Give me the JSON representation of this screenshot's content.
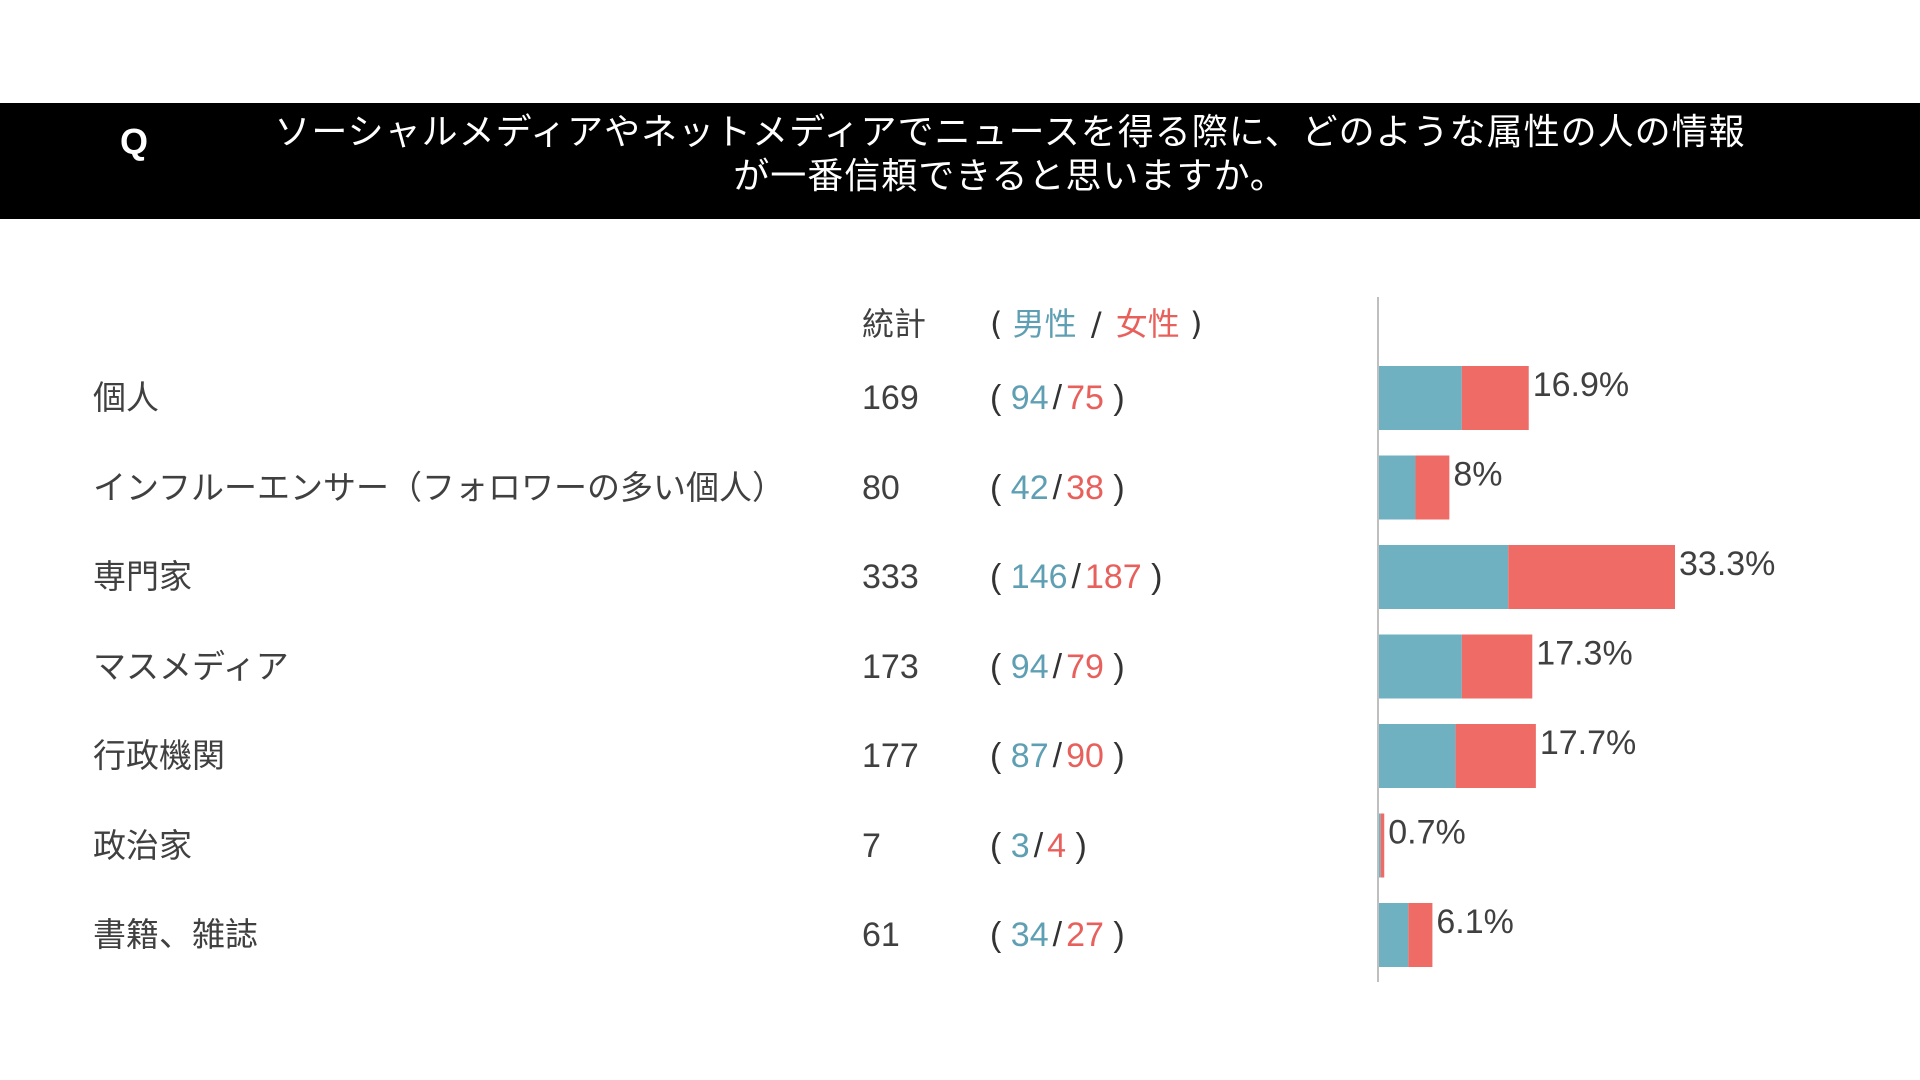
{
  "title": {
    "q_mark": "Q",
    "line1": "ソーシャルメディアやネットメディアでニュースを得る際に、どのような属性の人の情報",
    "line2": "が一番信頼できると思いますか。"
  },
  "headers": {
    "total": "統計",
    "open_paren": "(",
    "male": "男性",
    "slash": "/",
    "female": "女性",
    "close_paren": ")"
  },
  "colors": {
    "male": "#6fb0c1",
    "female": "#ef6b66",
    "axis": "#bfbfbf"
  },
  "chart_data": {
    "type": "bar",
    "orientation": "horizontal",
    "stacked": true,
    "categories": [
      "個人",
      "インフルーエンサー（フォロワーの多い個人）",
      "専門家",
      "マスメディア",
      "行政機関",
      "政治家",
      "書籍、雑誌"
    ],
    "totals": [
      169,
      80,
      333,
      173,
      177,
      7,
      61
    ],
    "series": [
      {
        "key": "male",
        "values": [
          94,
          42,
          146,
          94,
          87,
          3,
          34
        ]
      },
      {
        "key": "female",
        "values": [
          75,
          38,
          187,
          79,
          90,
          4,
          27
        ]
      }
    ],
    "percent_labels": [
      "16.9%",
      "8%",
      "33.3%",
      "17.3%",
      "17.7%",
      "0.7%",
      "6.1%"
    ],
    "xlim": [
      0,
      333
    ],
    "grid": false,
    "legend": "none"
  }
}
